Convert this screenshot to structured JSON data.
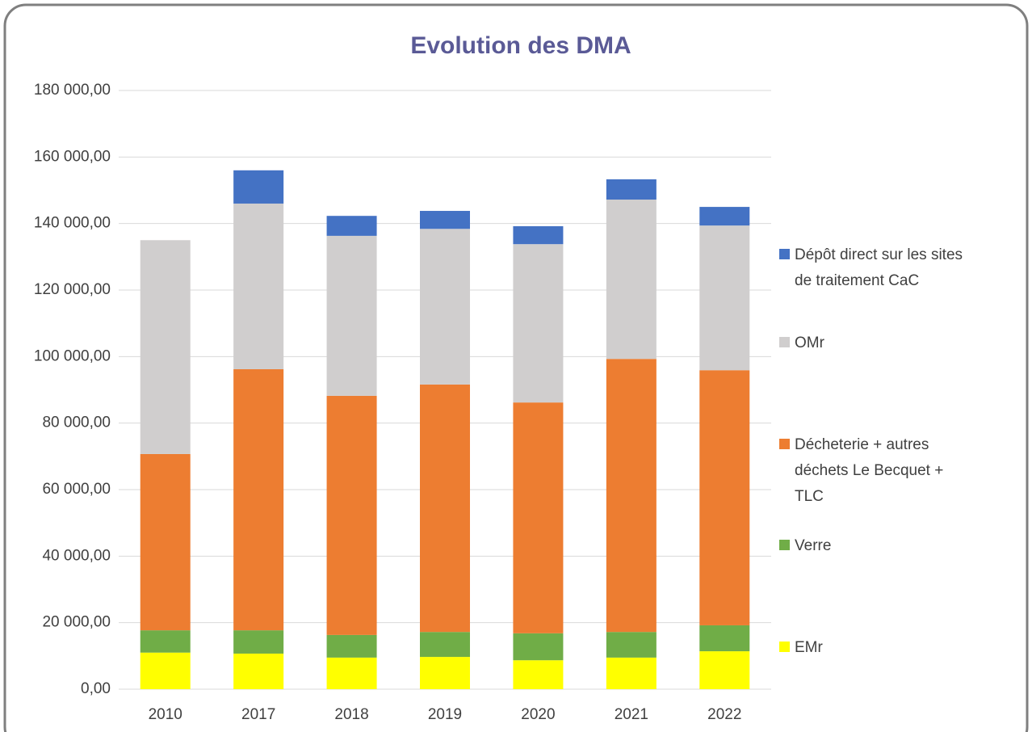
{
  "chart_data": {
    "type": "stacked_bar",
    "title": "Evolution des DMA",
    "categories": [
      "2010",
      "2017",
      "2018",
      "2019",
      "2020",
      "2021",
      "2022"
    ],
    "series": [
      {
        "name": "EMr",
        "color": "#ffff00",
        "values": [
          11000,
          10700,
          9500,
          9700,
          8700,
          9500,
          11400
        ]
      },
      {
        "name": "Verre",
        "color": "#70ad47",
        "values": [
          6700,
          7000,
          6800,
          7500,
          8100,
          7700,
          7800
        ]
      },
      {
        "name": "Décheterie + autres déchets Le Becquet + TLC",
        "color": "#ed7d31",
        "values": [
          53000,
          78500,
          71900,
          74400,
          69400,
          82100,
          76700
        ]
      },
      {
        "name": "OMr",
        "color": "#d0cece",
        "values": [
          64300,
          49800,
          48100,
          46800,
          47600,
          47900,
          43500
        ]
      },
      {
        "name": "Dépôt direct sur les sites de traitement CaC",
        "color": "#4472c4",
        "values": [
          0,
          10000,
          6000,
          5400,
          5400,
          6100,
          5600
        ]
      }
    ],
    "ylim": [
      0,
      180000
    ],
    "yticks": [
      {
        "value": 0,
        "label": "0,00"
      },
      {
        "value": 20000,
        "label": "20 000,00"
      },
      {
        "value": 40000,
        "label": "40 000,00"
      },
      {
        "value": 60000,
        "label": "60 000,00"
      },
      {
        "value": 80000,
        "label": "80 000,00"
      },
      {
        "value": 100000,
        "label": "100 000,00"
      },
      {
        "value": 120000,
        "label": "120 000,00"
      },
      {
        "value": 140000,
        "label": "140 000,00"
      },
      {
        "value": 160000,
        "label": "160 000,00"
      },
      {
        "value": 180000,
        "label": "180 000,00"
      }
    ],
    "grid": true,
    "legend": "right"
  }
}
